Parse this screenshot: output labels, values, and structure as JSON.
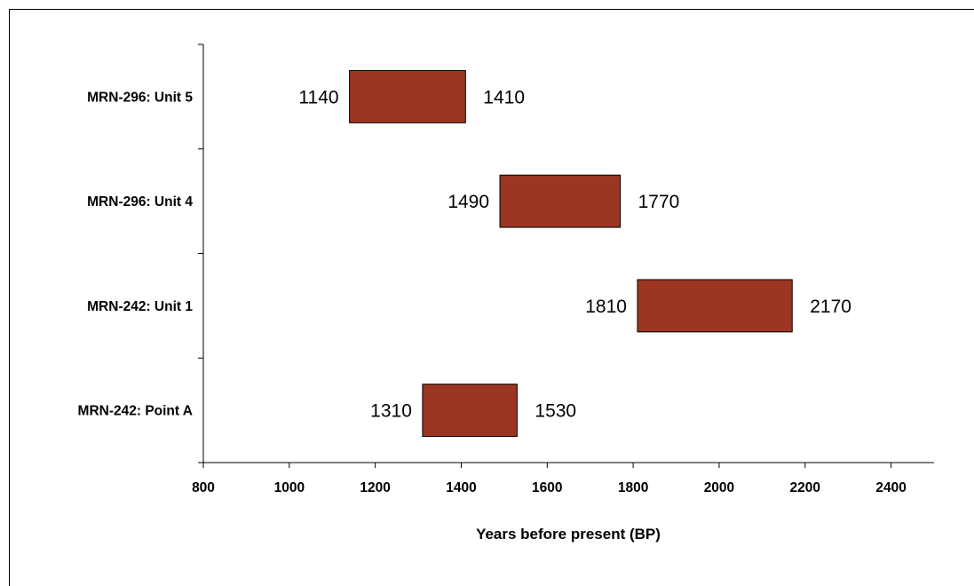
{
  "chart_data": {
    "type": "bar",
    "orientation": "horizontal",
    "subtype": "floating-range",
    "categories": [
      "MRN-296: Unit 5",
      "MRN-296: Unit 4",
      "MRN-242: Unit 1",
      "MRN-242: Point A"
    ],
    "series": [
      {
        "ranges": [
          [
            1140,
            1410
          ],
          [
            1490,
            1770
          ],
          [
            1810,
            2170
          ],
          [
            1310,
            1530
          ]
        ],
        "color": "#9b3623"
      }
    ],
    "xlabel": "Years before present (BP)",
    "ylabel": "",
    "xlim": [
      800,
      2500
    ],
    "xticks": [
      "800",
      "1000",
      "1200",
      "1400",
      "1600",
      "1800",
      "2000",
      "2200",
      "2400"
    ],
    "data_labels": [
      [
        "1140",
        "1410"
      ],
      [
        "1490",
        "1770"
      ],
      [
        "1810",
        "2170"
      ],
      [
        "1310",
        "1530"
      ]
    ],
    "grid": false,
    "legend": false
  }
}
